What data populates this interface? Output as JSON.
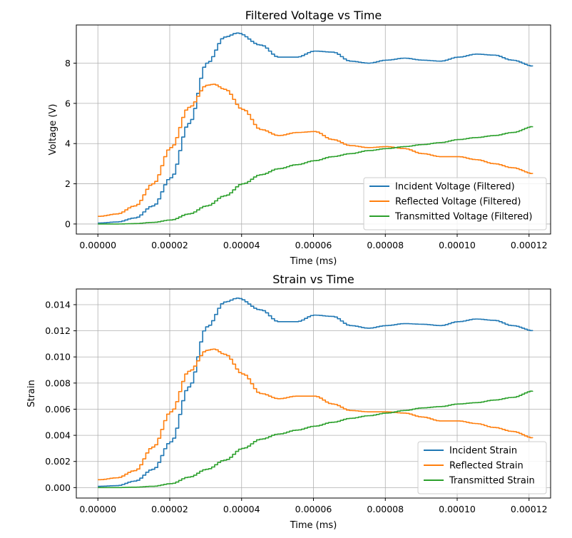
{
  "chart_data": [
    {
      "type": "line",
      "title": "Filtered Voltage vs Time",
      "xlabel": "Time (ms)",
      "ylabel": "Voltage (V)",
      "xlim": [
        -6e-06,
        0.000126
      ],
      "ylim": [
        -0.5,
        9.9
      ],
      "xticks": [
        0,
        2e-05,
        4e-05,
        6e-05,
        8e-05,
        0.0001,
        0.00012
      ],
      "xtick_labels": [
        "0.00000",
        "0.00002",
        "0.00004",
        "0.00006",
        "0.00008",
        "0.00010",
        "0.00012"
      ],
      "yticks": [
        0,
        2,
        4,
        6,
        8
      ],
      "ytick_labels": [
        "0",
        "2",
        "4",
        "6",
        "8"
      ],
      "grid": true,
      "legend_position": "lower-right",
      "series": [
        {
          "name": "Incident Voltage (Filtered)",
          "color": "#1f77b4",
          "x": [
            0,
            5e-06,
            1e-05,
            1.5e-05,
            2e-05,
            2.5e-05,
            3e-05,
            3.5e-05,
            3.85e-05,
            4.5e-05,
            5e-05,
            5.5e-05,
            6e-05,
            6.5e-05,
            7e-05,
            7.5e-05,
            8e-05,
            8.5e-05,
            9e-05,
            9.5e-05,
            0.0001,
            0.000105,
            0.00011,
            0.000115,
            0.000121
          ],
          "y": [
            0.05,
            0.1,
            0.3,
            0.9,
            2.3,
            5.0,
            8.0,
            9.3,
            9.5,
            8.9,
            8.3,
            8.3,
            8.6,
            8.55,
            8.1,
            8.0,
            8.15,
            8.25,
            8.15,
            8.1,
            8.3,
            8.45,
            8.4,
            8.15,
            7.85
          ]
        },
        {
          "name": "Reflected Voltage (Filtered)",
          "color": "#ff7f0e",
          "x": [
            0,
            5e-06,
            1e-05,
            1.5e-05,
            2e-05,
            2.5e-05,
            3e-05,
            3.2e-05,
            3.5e-05,
            4e-05,
            4.5e-05,
            5e-05,
            5.5e-05,
            6e-05,
            6.5e-05,
            7e-05,
            7.5e-05,
            8e-05,
            8.5e-05,
            9e-05,
            9.5e-05,
            0.0001,
            0.000105,
            0.00011,
            0.000115,
            0.000121
          ],
          "y": [
            0.38,
            0.5,
            0.9,
            2.0,
            3.8,
            5.8,
            6.9,
            6.95,
            6.7,
            5.7,
            4.7,
            4.4,
            4.55,
            4.6,
            4.2,
            3.9,
            3.8,
            3.85,
            3.75,
            3.5,
            3.35,
            3.35,
            3.2,
            3.0,
            2.8,
            2.5
          ]
        },
        {
          "name": "Transmitted Voltage (Filtered)",
          "color": "#2ca02c",
          "x": [
            0,
            5e-06,
            1e-05,
            1.5e-05,
            2e-05,
            2.5e-05,
            3e-05,
            3.5e-05,
            4e-05,
            4.5e-05,
            5e-05,
            5.5e-05,
            6e-05,
            6.5e-05,
            7e-05,
            7.5e-05,
            8e-05,
            8.5e-05,
            9e-05,
            9.5e-05,
            0.0001,
            0.000105,
            0.00011,
            0.000115,
            0.000121
          ],
          "y": [
            0.0,
            0.0,
            0.02,
            0.08,
            0.2,
            0.5,
            0.9,
            1.4,
            2.0,
            2.45,
            2.75,
            2.95,
            3.15,
            3.35,
            3.5,
            3.65,
            3.75,
            3.85,
            3.95,
            4.05,
            4.2,
            4.3,
            4.4,
            4.55,
            4.85
          ]
        }
      ]
    },
    {
      "type": "line",
      "title": "Strain vs Time",
      "xlabel": "Time (ms)",
      "ylabel": "Strain",
      "xlim": [
        -6e-06,
        0.000126
      ],
      "ylim": [
        -0.0008,
        0.0152
      ],
      "xticks": [
        0,
        2e-05,
        4e-05,
        6e-05,
        8e-05,
        0.0001,
        0.00012
      ],
      "xtick_labels": [
        "0.00000",
        "0.00002",
        "0.00004",
        "0.00006",
        "0.00008",
        "0.00010",
        "0.00012"
      ],
      "yticks": [
        0,
        0.002,
        0.004,
        0.006,
        0.008,
        0.01,
        0.012,
        0.014
      ],
      "ytick_labels": [
        "0.000",
        "0.002",
        "0.004",
        "0.006",
        "0.008",
        "0.010",
        "0.012",
        "0.014"
      ],
      "grid": true,
      "legend_position": "lower-right",
      "series": [
        {
          "name": "Incident Strain",
          "color": "#1f77b4",
          "x": [
            0,
            5e-06,
            1e-05,
            1.5e-05,
            2e-05,
            2.5e-05,
            3e-05,
            3.5e-05,
            3.85e-05,
            4.5e-05,
            5e-05,
            5.5e-05,
            6e-05,
            6.5e-05,
            7e-05,
            7.5e-05,
            8e-05,
            8.5e-05,
            9e-05,
            9.5e-05,
            0.0001,
            0.000105,
            0.00011,
            0.000115,
            0.000121
          ],
          "y": [
            0.0001,
            0.00015,
            0.0005,
            0.0014,
            0.0035,
            0.0077,
            0.0123,
            0.0142,
            0.0145,
            0.0136,
            0.0127,
            0.0127,
            0.0132,
            0.0131,
            0.0124,
            0.0122,
            0.0124,
            0.01255,
            0.0125,
            0.0124,
            0.0127,
            0.0129,
            0.0128,
            0.0124,
            0.012
          ]
        },
        {
          "name": "Reflected Strain",
          "color": "#ff7f0e",
          "x": [
            0,
            5e-06,
            1e-05,
            1.5e-05,
            2e-05,
            2.5e-05,
            3e-05,
            3.2e-05,
            3.5e-05,
            4e-05,
            4.5e-05,
            5e-05,
            5.5e-05,
            6e-05,
            6.5e-05,
            7e-05,
            7.5e-05,
            8e-05,
            8.5e-05,
            9e-05,
            9.5e-05,
            0.0001,
            0.000105,
            0.00011,
            0.000115,
            0.000121
          ],
          "y": [
            0.0006,
            0.00075,
            0.0013,
            0.0031,
            0.0058,
            0.0089,
            0.0105,
            0.0106,
            0.0102,
            0.0087,
            0.0072,
            0.0068,
            0.007,
            0.007,
            0.0064,
            0.0059,
            0.0058,
            0.0058,
            0.0057,
            0.0054,
            0.0051,
            0.0051,
            0.0049,
            0.0046,
            0.0043,
            0.0038
          ]
        },
        {
          "name": "Transmitted Strain",
          "color": "#2ca02c",
          "x": [
            0,
            5e-06,
            1e-05,
            1.5e-05,
            2e-05,
            2.5e-05,
            3e-05,
            3.5e-05,
            4e-05,
            4.5e-05,
            5e-05,
            5.5e-05,
            6e-05,
            6.5e-05,
            7e-05,
            7.5e-05,
            8e-05,
            8.5e-05,
            9e-05,
            9.5e-05,
            0.0001,
            0.000105,
            0.00011,
            0.000115,
            0.000121
          ],
          "y": [
            0.0,
            0.0,
            3e-05,
            0.0001,
            0.0003,
            0.0008,
            0.0014,
            0.0021,
            0.003,
            0.0037,
            0.0041,
            0.0044,
            0.0047,
            0.005,
            0.0053,
            0.0055,
            0.0057,
            0.0059,
            0.0061,
            0.0062,
            0.0064,
            0.0065,
            0.0067,
            0.0069,
            0.0074
          ]
        }
      ]
    }
  ]
}
